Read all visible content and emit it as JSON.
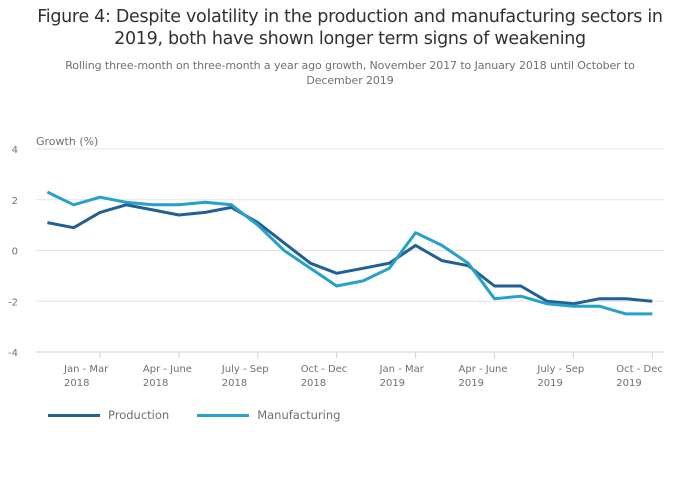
{
  "header": {
    "title": "Figure 4: Despite volatility in the production and manufacturing sectors in 2019, both have shown longer term signs of weakening",
    "subtitle": "Rolling three-month on three-month a year ago growth, November 2017 to January 2018 until October to December 2019"
  },
  "chart_data": {
    "type": "line",
    "title": "Figure 4: Despite volatility in the production and manufacturing sectors in 2019, both have shown longer term signs of weakening",
    "subtitle": "Rolling three-month on three-month a year ago growth, November 2017 to January 2018 until October to December 2019",
    "xlabel": "",
    "ylabel": "Growth (%)",
    "ylim": [
      -4,
      4
    ],
    "yticks": [
      4,
      2,
      0,
      -2,
      -4
    ],
    "grid": true,
    "legend_position": "bottom-left",
    "x": [
      "Nov - Jan 2018",
      "Dec - Feb 2018",
      "Jan - Mar 2018",
      "Feb - Apr 2018",
      "Mar - May 2018",
      "Apr - June 2018",
      "May - July 2018",
      "June - Aug 2018",
      "July - Sep 2018",
      "Aug - Oct 2018",
      "Sep - Nov 2018",
      "Oct - Dec 2018",
      "Nov - Jan 2019",
      "Dec - Feb 2019",
      "Jan - Mar 2019",
      "Feb - Apr 2019",
      "Mar - May 2019",
      "Apr - June 2019",
      "May - July 2019",
      "June - Aug 2019",
      "July - Sep 2019",
      "Aug - Oct 2019",
      "Sep - Nov 2019",
      "Oct - Dec 2019"
    ],
    "xticks": [
      {
        "index": 2,
        "line1": "Jan - Mar",
        "line2": "2018"
      },
      {
        "index": 5,
        "line1": "Apr - June",
        "line2": "2018"
      },
      {
        "index": 8,
        "line1": "July - Sep",
        "line2": "2018"
      },
      {
        "index": 11,
        "line1": "Oct - Dec",
        "line2": "2018"
      },
      {
        "index": 14,
        "line1": "Jan - Mar",
        "line2": "2019"
      },
      {
        "index": 17,
        "line1": "Apr - June",
        "line2": "2019"
      },
      {
        "index": 20,
        "line1": "July - Sep",
        "line2": "2019"
      },
      {
        "index": 23,
        "line1": "Oct - Dec",
        "line2": "2019"
      }
    ],
    "series": [
      {
        "name": "Production",
        "color": "#206095",
        "values": [
          1.1,
          0.9,
          1.5,
          1.8,
          1.6,
          1.4,
          1.5,
          1.7,
          1.1,
          0.3,
          -0.5,
          -0.9,
          -0.7,
          -0.5,
          0.2,
          -0.4,
          -0.6,
          -1.4,
          -1.4,
          -2.0,
          -2.1,
          -1.9,
          -1.9,
          -2.0
        ]
      },
      {
        "name": "Manufacturing",
        "color": "#27a0cc",
        "values": [
          2.3,
          1.8,
          2.1,
          1.9,
          1.8,
          1.8,
          1.9,
          1.8,
          1.0,
          0.0,
          -0.7,
          -1.4,
          -1.2,
          -0.7,
          0.7,
          0.2,
          -0.5,
          -1.9,
          -1.8,
          -2.1,
          -2.2,
          -2.2,
          -2.5,
          -2.5
        ]
      }
    ]
  }
}
